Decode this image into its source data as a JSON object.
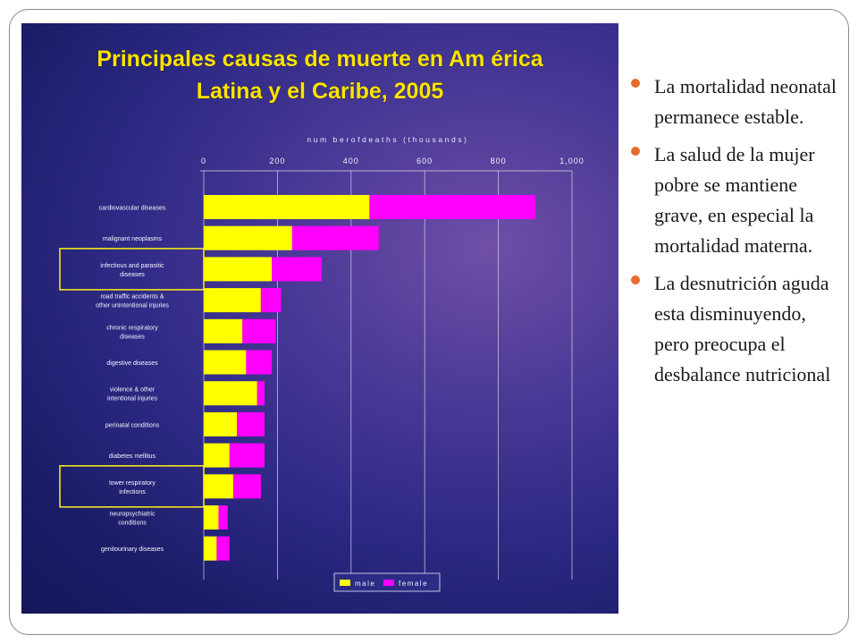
{
  "chart_data": {
    "type": "bar",
    "stacked": true,
    "orientation": "horizontal",
    "title": "Principales causas de muerte en Am érica Latina y el Caribe, 2005",
    "title_lines": [
      "Principales causas de muerte en Am érica",
      "Latina y el Caribe, 2005"
    ],
    "xlabel": "num berofdeaths (thousands)",
    "xticks": [
      "0",
      "200",
      "400",
      "600",
      "800",
      "1,000"
    ],
    "xlim": [
      0,
      1000
    ],
    "categories": [
      [
        "cardiovascular diseases"
      ],
      [
        "malignant neoplasms"
      ],
      [
        "infectious and parasitic",
        "diseases"
      ],
      [
        "road traffic accidents &",
        "other unintentional injuries"
      ],
      [
        "chronic respiratory",
        "diseases"
      ],
      [
        "digestive diseases"
      ],
      [
        "violence & other",
        "intentional injuries"
      ],
      [
        "perinatal conditions"
      ],
      [
        "diabetes mellitus"
      ],
      [
        "lower respiratory",
        "infections"
      ],
      [
        "neuropsychiatric",
        "conditions"
      ],
      [
        "genitourinary diseases"
      ]
    ],
    "highlighted": [
      2,
      9
    ],
    "series": [
      {
        "name": "male",
        "color": "#ffff00",
        "values": [
          450,
          240,
          185,
          155,
          105,
          115,
          145,
          90,
          70,
          80,
          40,
          35
        ]
      },
      {
        "name": "female",
        "color": "#ff00ff",
        "values": [
          450,
          235,
          135,
          55,
          90,
          70,
          20,
          75,
          95,
          75,
          25,
          35
        ]
      }
    ],
    "grid": true,
    "legend_position": "bottom-right"
  },
  "bullets": [
    "La mortalidad neonatal permanece estable.",
    "La salud de la mujer pobre se mantiene grave, en especial la mortalidad materna.",
    "La desnutrición aguda esta disminuyendo, pero preocupa el desbalance nutricional"
  ],
  "colors": {
    "panel_bg": "#2f2a86",
    "title_text": "#ffe400",
    "bullet_marker": "#e86a2a"
  }
}
